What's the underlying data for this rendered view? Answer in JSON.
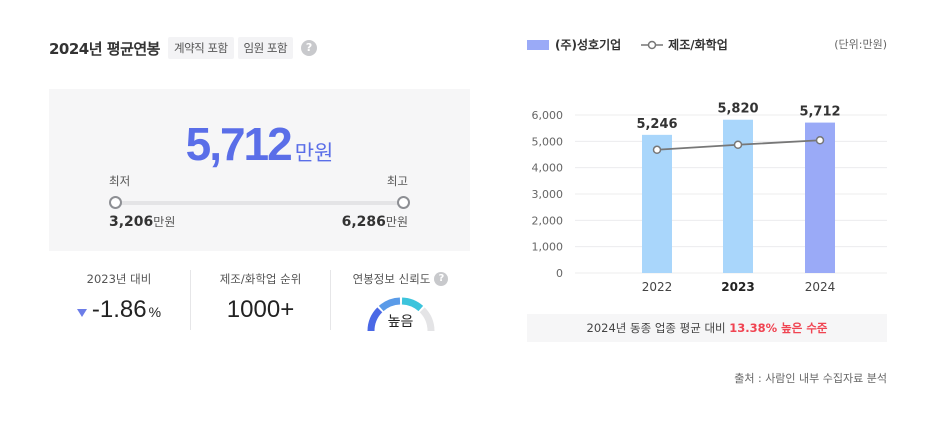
{
  "header": {
    "title": "2024년 평균연봉",
    "tags": [
      "계약직 포함",
      "임원 포함"
    ],
    "help_icon": "?"
  },
  "salary": {
    "value": "5,712",
    "unit": "만원",
    "min_label": "최저",
    "max_label": "최고",
    "min_value": "3,206",
    "max_value": "6,286",
    "value_unit": "만원"
  },
  "stats": {
    "yoy": {
      "label": "2023년 대비",
      "value": "-1.86",
      "suffix": "%",
      "direction": "down"
    },
    "rank": {
      "label": "제조/화학업 순위",
      "value": "1000+"
    },
    "reliability": {
      "label": "연봉정보 신뢰도",
      "value": "높음",
      "level": 0.75
    }
  },
  "legend": {
    "company": "(주)성호기업",
    "industry": "제조/화학업",
    "unit_note": "(단위:만원)"
  },
  "chart_data": {
    "type": "bar",
    "categories": [
      "2022",
      "2023",
      "2024"
    ],
    "series": [
      {
        "name": "(주)성호기업",
        "values": [
          5246,
          5820,
          5712
        ],
        "labels": [
          "5,246",
          "5,820",
          "5,712"
        ]
      },
      {
        "name": "제조/화학업",
        "values": [
          4680,
          4870,
          5040
        ]
      }
    ],
    "ylim": [
      0,
      6000
    ],
    "yticks": [
      0,
      1000,
      2000,
      3000,
      4000,
      5000,
      6000
    ],
    "ytick_labels": [
      "0",
      "1,000",
      "2,000",
      "3,000",
      "4,000",
      "5,000",
      "6,000"
    ],
    "bar_colors": [
      "#a9d6fb",
      "#a9d6fb",
      "#9aaaf7"
    ],
    "line_color": "#777777",
    "grid": true
  },
  "comparison": {
    "prefix": "2024년 동종 업종 평균 대비 ",
    "highlight": "13.38% 높은 수준"
  },
  "source": "출처 : 사람인 내부 수집자료 분석"
}
